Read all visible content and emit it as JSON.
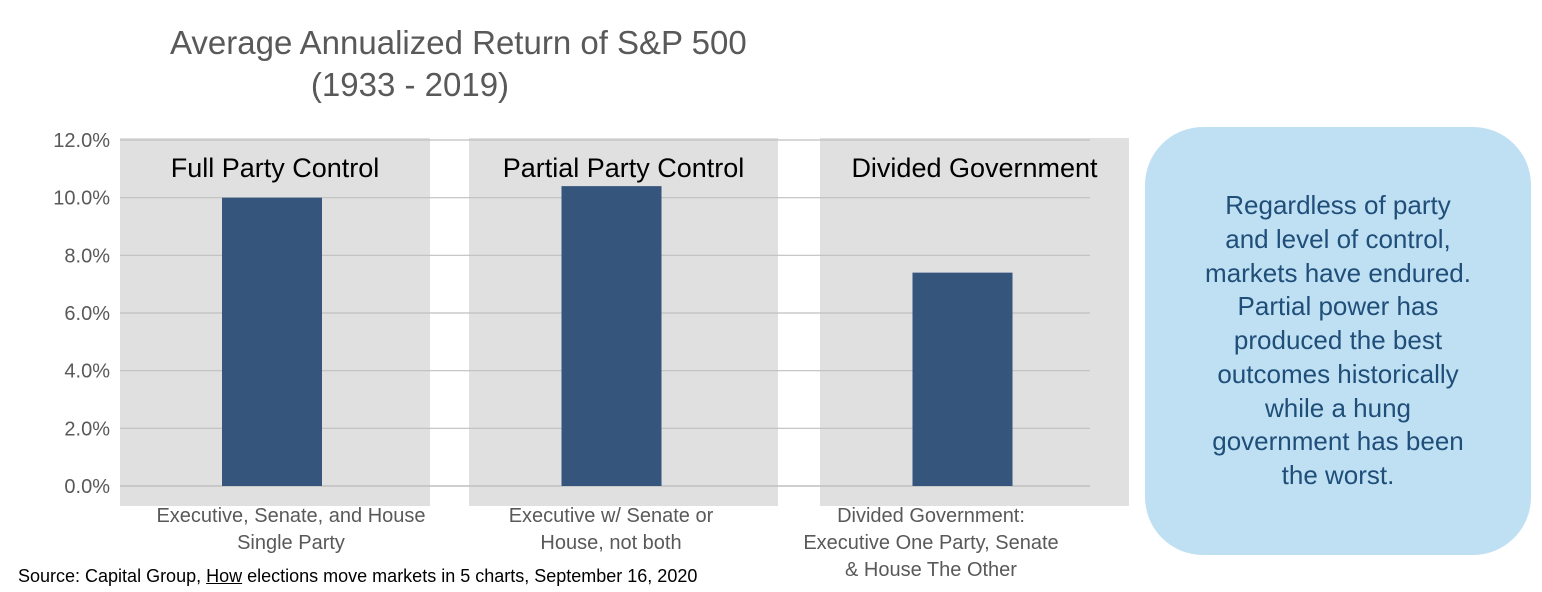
{
  "chart_data": {
    "type": "bar",
    "title": [
      "Average Annualized Return of S&P 500",
      "(1933 - 2019)"
    ],
    "categories": [
      [
        "Executive, Senate, and House",
        "Single Party"
      ],
      [
        "Executive w/ Senate or",
        "House, not both"
      ],
      [
        "Divided Government:",
        "Executive One Party, Senate",
        "& House The Other"
      ]
    ],
    "panel_titles": [
      "Full Party Control",
      "Partial Party Control",
      "Divided Government"
    ],
    "values": [
      10.0,
      10.4,
      7.4
    ],
    "value_unit": "%",
    "ylim": [
      0,
      12
    ],
    "y_ticks": [
      "0.0%",
      "2.0%",
      "4.0%",
      "6.0%",
      "8.0%",
      "10.0%",
      "12.0%"
    ],
    "grid": true,
    "colors": {
      "bar": "#35557d",
      "panel": "#e0e0e0",
      "grid": "#bfbfbf",
      "tick_text": "#595959"
    }
  },
  "callout": {
    "lines": [
      "Regardless of party",
      "and level of control,",
      "markets have endured.",
      "Partial power has",
      "produced the best",
      "outcomes historically",
      "while a hung",
      "government has been",
      "the worst."
    ],
    "color": "#bfe0f3"
  },
  "source": {
    "prefix": "Source: Capital Group, ",
    "link": "How",
    "suffix": " elections move markets in 5 charts, September 16, 2020"
  }
}
